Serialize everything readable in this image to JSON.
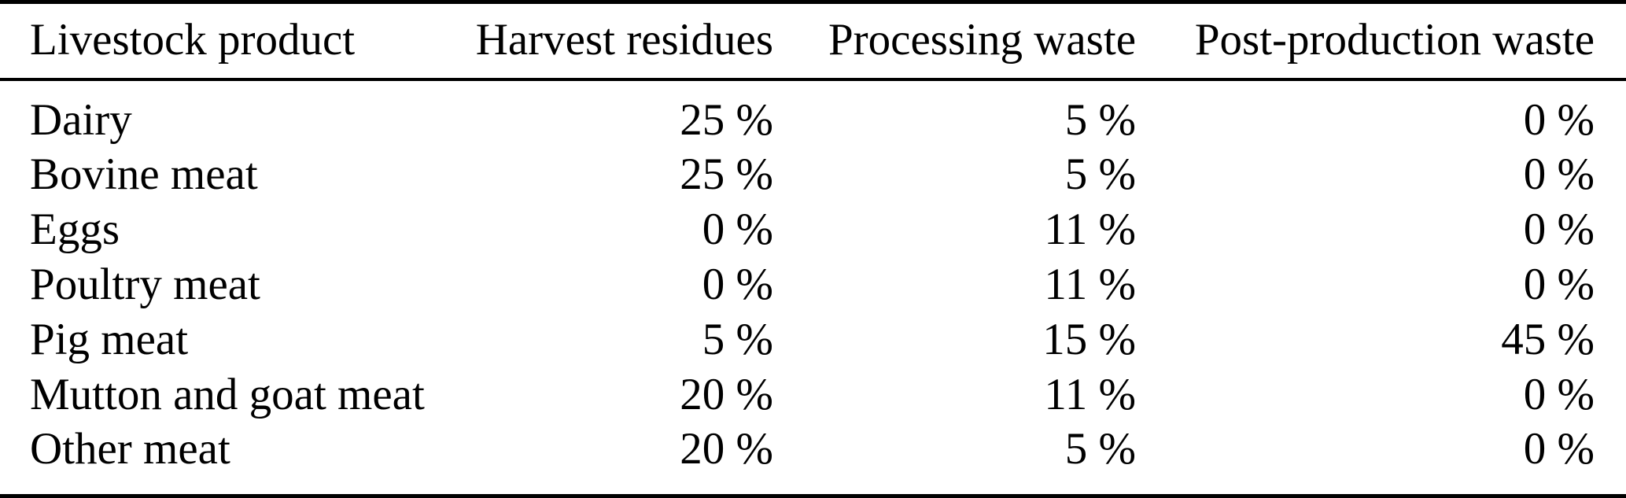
{
  "table": {
    "columns": [
      {
        "label": "Livestock product",
        "align": "left"
      },
      {
        "label": "Harvest residues",
        "align": "right"
      },
      {
        "label": "Processing waste",
        "align": "right"
      },
      {
        "label": "Post-production waste",
        "align": "right"
      }
    ],
    "rows": [
      {
        "product": "Dairy",
        "harvest_residues": "25 %",
        "processing_waste": "5 %",
        "post_production_waste": "0 %"
      },
      {
        "product": "Bovine meat",
        "harvest_residues": "25 %",
        "processing_waste": "5 %",
        "post_production_waste": "0 %"
      },
      {
        "product": "Eggs",
        "harvest_residues": "0 %",
        "processing_waste": "11 %",
        "post_production_waste": "0 %"
      },
      {
        "product": "Poultry meat",
        "harvest_residues": "0 %",
        "processing_waste": "11 %",
        "post_production_waste": "0 %"
      },
      {
        "product": "Pig meat",
        "harvest_residues": "5 %",
        "processing_waste": "15 %",
        "post_production_waste": "45 %"
      },
      {
        "product": "Mutton and goat meat",
        "harvest_residues": "20 %",
        "processing_waste": "11 %",
        "post_production_waste": "0 %"
      },
      {
        "product": "Other meat",
        "harvest_residues": "20 %",
        "processing_waste": "5 %",
        "post_production_waste": "0 %"
      }
    ]
  },
  "chart_data": {
    "type": "table",
    "categories": [
      "Dairy",
      "Bovine meat",
      "Eggs",
      "Poultry meat",
      "Pig meat",
      "Mutton and goat meat",
      "Other meat"
    ],
    "series": [
      {
        "name": "Harvest residues",
        "values": [
          25,
          25,
          0,
          0,
          5,
          20,
          20
        ],
        "unit": "%"
      },
      {
        "name": "Processing waste",
        "values": [
          5,
          5,
          11,
          11,
          15,
          11,
          5
        ],
        "unit": "%"
      },
      {
        "name": "Post-production waste",
        "values": [
          0,
          0,
          0,
          0,
          45,
          0,
          0
        ],
        "unit": "%"
      }
    ]
  },
  "colors": {
    "text": "#000000",
    "background": "#ffffff",
    "rule": "#000000"
  }
}
